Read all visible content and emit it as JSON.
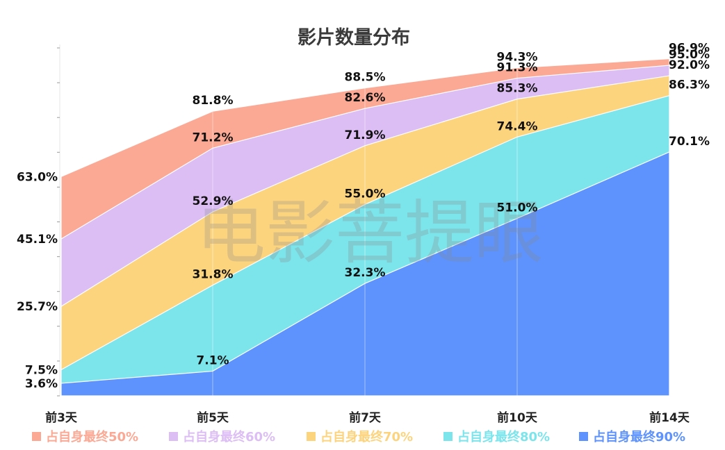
{
  "chart_data": {
    "type": "area",
    "title": "影片数量分布",
    "categories": [
      "前3天",
      "前5天",
      "前7天",
      "前10天",
      "前14天"
    ],
    "ylim": [
      0,
      100
    ],
    "series": [
      {
        "name": "占自身最终50%",
        "values": [
          63.0,
          81.8,
          88.5,
          94.3,
          96.9
        ],
        "labels": [
          "63.0%",
          "81.8%",
          "88.5%",
          "94.3%",
          "96.9%"
        ],
        "color": "#FBA994"
      },
      {
        "name": "占自身最终60%",
        "values": [
          45.1,
          71.2,
          82.6,
          91.3,
          95.0
        ],
        "labels": [
          "45.1%",
          "71.2%",
          "82.6%",
          "91.3%",
          "95.0%"
        ],
        "color": "#DCBEF5"
      },
      {
        "name": "占自身最终70%",
        "values": [
          25.7,
          52.9,
          71.9,
          85.3,
          92.0
        ],
        "labels": [
          "25.7%",
          "52.9%",
          "71.9%",
          "85.3%",
          "92.0%"
        ],
        "color": "#FDD47E"
      },
      {
        "name": "占自身最终80%",
        "values": [
          7.5,
          31.8,
          55.0,
          74.4,
          86.3
        ],
        "labels": [
          "7.5%",
          "31.8%",
          "55.0%",
          "74.4%",
          "86.3%"
        ],
        "color": "#7CE5EC"
      },
      {
        "name": "占自身最终90%",
        "values": [
          3.6,
          7.1,
          32.3,
          51.0,
          70.1
        ],
        "labels": [
          "3.6%",
          "7.1%",
          "32.3%",
          "51.0%",
          "70.1%"
        ],
        "color": "#5E93FD"
      }
    ],
    "legend_position": "bottom",
    "grid": false,
    "watermark": "电影菩提眼"
  }
}
